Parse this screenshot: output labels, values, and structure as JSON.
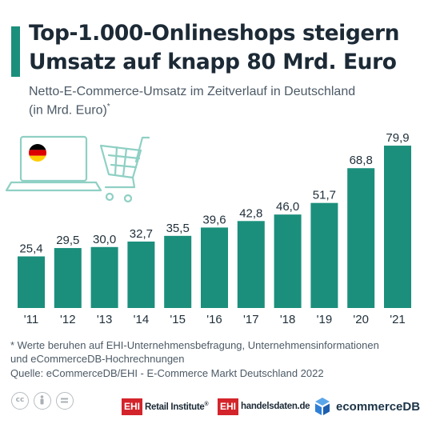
{
  "header": {
    "title_line1": "Top-1.000-Onlineshops steigern",
    "title_line2": "Umsatz auf knapp 80 Mrd. Euro",
    "subtitle_line1": "Netto-E-Commerce-Umsatz im Zeitverlauf in Deutschland",
    "subtitle_line2": "(in Mrd. Euro)",
    "subtitle_mark": "*"
  },
  "chart_data": {
    "type": "bar",
    "categories": [
      "'11",
      "'12",
      "'13",
      "'14",
      "'15",
      "'16",
      "'17",
      "'18",
      "'19",
      "'20",
      "'21"
    ],
    "values": [
      25.4,
      29.5,
      30.0,
      32.7,
      35.5,
      39.6,
      42.8,
      46.0,
      51.7,
      68.8,
      79.9
    ],
    "value_labels": [
      "25,4",
      "29,5",
      "30,0",
      "32,7",
      "35,5",
      "39,6",
      "42,8",
      "46,0",
      "51,7",
      "68,8",
      "79,9"
    ],
    "ylim": [
      0,
      80
    ],
    "grid": false,
    "bar_color": "#1b8f7c"
  },
  "footnote": {
    "line1": "* Werte beruhen auf EHI-Unternehmensbefragung, Unternehmensinformationen",
    "line2": "und eCommerceDB-Hochrechnungen",
    "source": "Quelle: eCommerceDB/EHI - E-Commerce Markt Deutschland 2022"
  },
  "license_icons": [
    "cc-icon",
    "by-person-icon",
    "nd-equals-icon"
  ],
  "logos": {
    "ehi_box": "EHI",
    "ehi_retail": "Retail Institute",
    "ehi_retail_mark": "®",
    "ehi_handel": "handelsdaten.de",
    "ecommercedb": "ecommerceDB"
  },
  "colors": {
    "accent": "#1b8f7c",
    "title": "#1c2a36",
    "text_muted": "#4c5a66",
    "ehi_red": "#d4242b",
    "ecdb_blue": "#2f7fd6",
    "icon_teal": "#8fd0c4"
  },
  "illustration": {
    "icons": [
      "laptop-icon",
      "germany-flag-icon",
      "shopping-cart-icon"
    ],
    "flag_colors": [
      "#000000",
      "#dd0000",
      "#ffce00"
    ]
  }
}
